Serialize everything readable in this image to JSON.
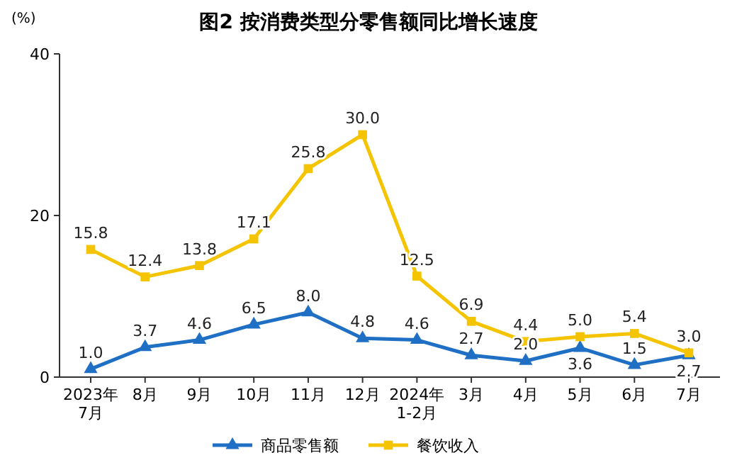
{
  "chart_data": {
    "type": "line",
    "title": "图2  按消费类型分零售额同比增长速度",
    "ylabel": "(%)",
    "categories": [
      "2023年\n7月",
      "8月",
      "9月",
      "10月",
      "11月",
      "12月",
      "2024年\n1-2月",
      "3月",
      "4月",
      "5月",
      "6月",
      "7月"
    ],
    "series": [
      {
        "name": "商品零售额",
        "color": "#1f6fc5",
        "marker": "triangle",
        "values": [
          1.0,
          3.7,
          4.6,
          6.5,
          8.0,
          4.8,
          4.6,
          2.7,
          2.0,
          3.6,
          1.5,
          2.7
        ],
        "value_labels": [
          "1.0",
          "3.7",
          "4.6",
          "6.5",
          "8.0",
          "4.8",
          "4.6",
          "2.7",
          "2.0",
          "3.6",
          "1.5",
          "2.7"
        ]
      },
      {
        "name": "餐饮收入",
        "color": "#f5c400",
        "marker": "square",
        "values": [
          15.8,
          12.4,
          13.8,
          17.1,
          25.8,
          30.0,
          12.5,
          6.9,
          4.4,
          5.0,
          5.4,
          3.0
        ],
        "value_labels": [
          "15.8",
          "12.4",
          "13.8",
          "17.1",
          "25.8",
          "30.0",
          "12.5",
          "6.9",
          "4.4",
          "5.0",
          "5.4",
          "3.0"
        ]
      }
    ],
    "ylim": [
      0,
      40
    ],
    "yticks": [
      0,
      20,
      40
    ],
    "legend": "bottom",
    "line_style": "solid"
  }
}
